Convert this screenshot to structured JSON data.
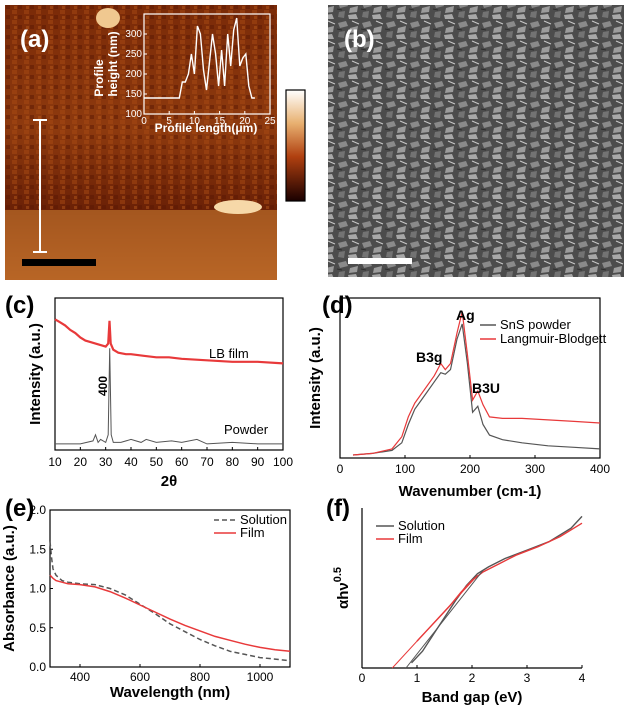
{
  "panels": {
    "a": {
      "letter": "(a)",
      "inset": {
        "ylabel_line1": "Profile",
        "ylabel_line2": "height (nm)",
        "xlabel": "Profile length(μm)"
      }
    },
    "b": {
      "letter": "(b)"
    },
    "c": {
      "letter": "(c)"
    },
    "d": {
      "letter": "(d)"
    },
    "e": {
      "letter": "(e)"
    },
    "f": {
      "letter": "(f)"
    }
  },
  "colors": {
    "red": "#e8393a",
    "gray": "#555555",
    "black": "#000000",
    "white": "#ffffff"
  },
  "chart_data": [
    {
      "panel": "a-inset",
      "type": "line",
      "xlabel": "Profile length(μm)",
      "ylabel": "Profile height (nm)",
      "xlim": [
        0,
        25
      ],
      "ylim": [
        100,
        350
      ],
      "xticks": [
        0,
        5,
        10,
        15,
        20,
        25
      ],
      "yticks": [
        100,
        150,
        200,
        250,
        300
      ],
      "series": [
        {
          "x": [
            0,
            1,
            2,
            3,
            4,
            5,
            6,
            7,
            7.6,
            8.2,
            8.8,
            9.4,
            10,
            10.6,
            11.2,
            11.8,
            12.4,
            13,
            13.6,
            14.2,
            14.8,
            15.4,
            16,
            16.6,
            17.2,
            17.8,
            18.4,
            19,
            19.6,
            20.2,
            20.8,
            21.4,
            22
          ],
          "values": [
            140,
            140,
            140,
            140,
            140,
            140,
            140,
            140,
            180,
            180,
            200,
            250,
            200,
            320,
            300,
            210,
            160,
            230,
            300,
            250,
            170,
            260,
            170,
            300,
            220,
            310,
            340,
            220,
            240,
            250,
            170,
            140,
            140
          ]
        }
      ]
    },
    {
      "panel": "c",
      "type": "line",
      "xlabel": "2θ",
      "ylabel": "Intensity (a.u.)",
      "xlim": [
        10,
        100
      ],
      "xticks": [
        10,
        20,
        30,
        40,
        50,
        60,
        70,
        80,
        90,
        100
      ],
      "annotations": [
        "LB film",
        "Powder",
        "400"
      ],
      "series": [
        {
          "name": "LB film",
          "color": "#e8393a",
          "x": [
            10,
            12,
            14,
            16,
            18,
            20,
            22,
            24,
            26,
            28,
            30,
            31,
            31.5,
            32,
            33,
            35,
            38,
            40,
            45,
            50,
            55,
            60,
            70,
            80,
            90,
            100
          ],
          "values": [
            0.86,
            0.84,
            0.82,
            0.79,
            0.77,
            0.74,
            0.72,
            0.71,
            0.7,
            0.69,
            0.68,
            0.7,
            0.85,
            0.7,
            0.66,
            0.64,
            0.63,
            0.63,
            0.62,
            0.61,
            0.61,
            0.6,
            0.59,
            0.58,
            0.58,
            0.57
          ]
        },
        {
          "name": "Powder",
          "color": "#555555",
          "x": [
            10,
            20,
            25,
            26,
            27,
            28,
            30,
            31,
            31.6,
            32.2,
            33,
            36,
            40,
            44,
            46,
            50,
            56,
            60,
            66,
            70,
            80,
            90,
            100
          ],
          "values": [
            0.04,
            0.04,
            0.06,
            0.1,
            0.05,
            0.07,
            0.05,
            0.1,
            0.67,
            0.1,
            0.05,
            0.05,
            0.07,
            0.05,
            0.07,
            0.05,
            0.06,
            0.05,
            0.07,
            0.04,
            0.05,
            0.04,
            0.04
          ]
        }
      ]
    },
    {
      "panel": "d",
      "type": "line",
      "xlabel": "Wavenumber (cm-1)",
      "ylabel": "Intensity (a.u.)",
      "xlim": [
        0,
        400
      ],
      "xticks": [
        0,
        100,
        200,
        300,
        400
      ],
      "annotations": [
        "Ag",
        "B3g",
        "B3U"
      ],
      "series": [
        {
          "name": "SnS powder",
          "color": "#555555",
          "x": [
            20,
            50,
            80,
            95,
            105,
            115,
            125,
            135,
            145,
            155,
            162,
            170,
            180,
            188,
            196,
            204,
            212,
            220,
            230,
            250,
            280,
            320,
            360,
            400
          ],
          "values": [
            0.02,
            0.03,
            0.05,
            0.1,
            0.22,
            0.32,
            0.38,
            0.44,
            0.5,
            0.56,
            0.55,
            0.58,
            0.78,
            0.88,
            0.62,
            0.3,
            0.34,
            0.22,
            0.15,
            0.12,
            0.1,
            0.08,
            0.07,
            0.06
          ]
        },
        {
          "name": "Langmuir-Blodgett",
          "color": "#e8393a",
          "x": [
            20,
            50,
            80,
            95,
            105,
            115,
            125,
            135,
            145,
            155,
            162,
            170,
            180,
            188,
            196,
            204,
            212,
            220,
            230,
            250,
            280,
            320,
            360,
            400
          ],
          "values": [
            0.02,
            0.03,
            0.06,
            0.14,
            0.27,
            0.36,
            0.42,
            0.48,
            0.54,
            0.62,
            0.58,
            0.62,
            0.82,
            0.96,
            0.68,
            0.38,
            0.44,
            0.35,
            0.27,
            0.26,
            0.26,
            0.25,
            0.24,
            0.23
          ]
        }
      ]
    },
    {
      "panel": "e",
      "type": "line",
      "xlabel": "Wavelength (nm)",
      "ylabel": "Absorbance (a.u.)",
      "xlim": [
        300,
        1100
      ],
      "ylim": [
        0,
        2.0
      ],
      "xticks": [
        400,
        600,
        800,
        1000
      ],
      "yticks": [
        0.0,
        0.5,
        1.0,
        1.5,
        2.0
      ],
      "series": [
        {
          "name": "Solution",
          "color": "#555555",
          "dash": true,
          "x": [
            300,
            305,
            310,
            320,
            340,
            360,
            400,
            450,
            500,
            550,
            600,
            650,
            700,
            750,
            800,
            850,
            900,
            950,
            1000,
            1050,
            1100
          ],
          "values": [
            1.6,
            1.4,
            1.25,
            1.17,
            1.1,
            1.08,
            1.06,
            1.05,
            1.0,
            0.92,
            0.8,
            0.68,
            0.55,
            0.45,
            0.35,
            0.27,
            0.2,
            0.16,
            0.12,
            0.1,
            0.08
          ]
        },
        {
          "name": "Film",
          "color": "#e8393a",
          "x": [
            300,
            310,
            320,
            340,
            360,
            400,
            450,
            500,
            550,
            600,
            650,
            700,
            750,
            800,
            850,
            900,
            950,
            1000,
            1050,
            1100
          ],
          "values": [
            1.17,
            1.13,
            1.1,
            1.08,
            1.06,
            1.05,
            1.02,
            0.96,
            0.88,
            0.79,
            0.7,
            0.61,
            0.53,
            0.46,
            0.39,
            0.34,
            0.29,
            0.25,
            0.22,
            0.2
          ]
        }
      ]
    },
    {
      "panel": "f",
      "type": "line",
      "xlabel": "Band gap (eV)",
      "ylabel": "αhν^0.5",
      "xlim": [
        0,
        4
      ],
      "xticks": [
        0,
        1,
        2,
        3,
        4
      ],
      "series": [
        {
          "name": "Solution",
          "color": "#555555",
          "x": [
            0.9,
            1.1,
            1.3,
            1.5,
            1.7,
            1.9,
            2.1,
            2.3,
            2.6,
            3.0,
            3.4,
            3.8,
            4.0
          ],
          "values": [
            0.03,
            0.1,
            0.2,
            0.3,
            0.4,
            0.49,
            0.56,
            0.6,
            0.65,
            0.7,
            0.75,
            0.83,
            0.9
          ]
        },
        {
          "name": "Film",
          "color": "#e8393a",
          "x": [
            1.0,
            1.2,
            1.4,
            1.6,
            1.8,
            2.0,
            2.2,
            2.5,
            2.8,
            3.2,
            3.6,
            4.0
          ],
          "values": [
            0.16,
            0.23,
            0.3,
            0.37,
            0.45,
            0.52,
            0.57,
            0.62,
            0.67,
            0.72,
            0.78,
            0.86
          ]
        },
        {
          "name": "fit-film",
          "color": "#e8393a",
          "legend": false,
          "x": [
            0.55,
            2.1
          ],
          "values": [
            0.0,
            0.55
          ]
        },
        {
          "name": "fit-solution",
          "color": "#555555",
          "legend": false,
          "x": [
            0.8,
            2.2
          ],
          "values": [
            0.0,
            0.58
          ]
        }
      ]
    }
  ]
}
